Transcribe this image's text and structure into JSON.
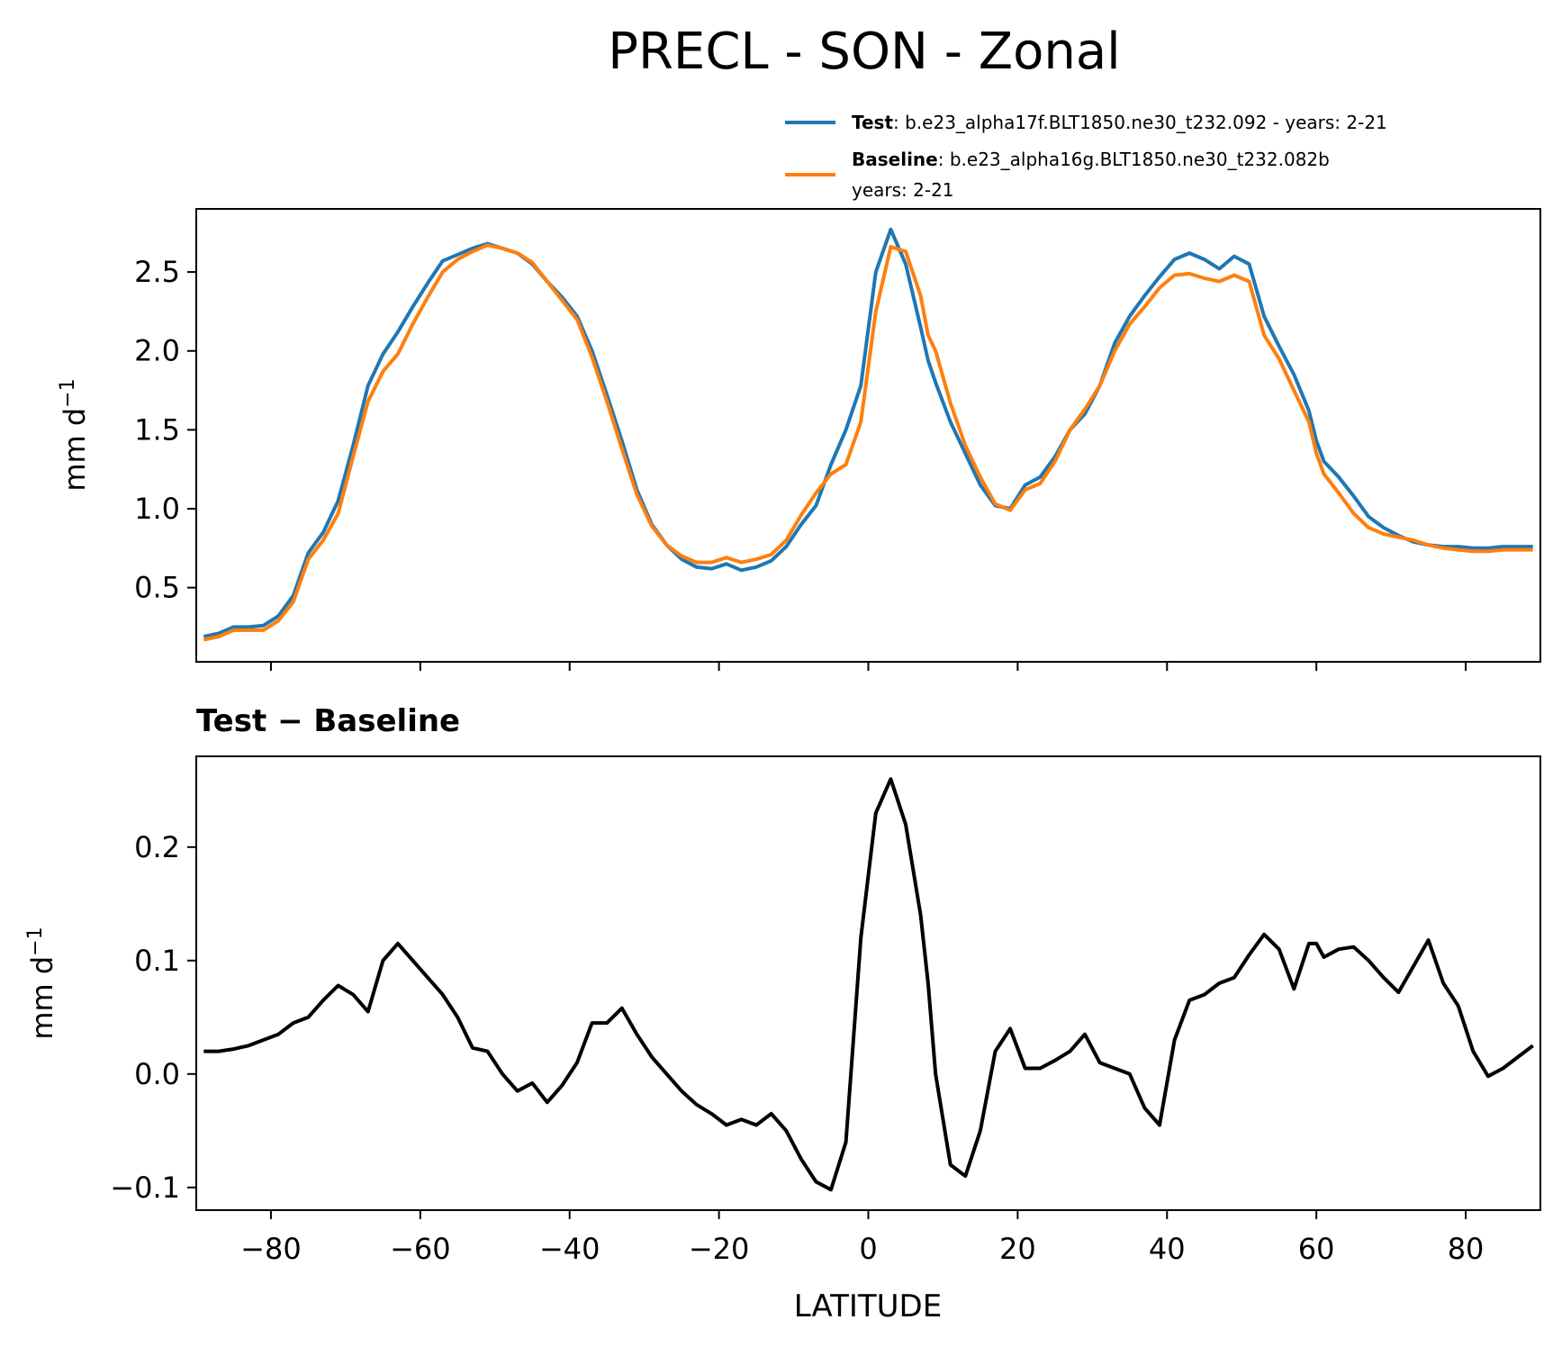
{
  "title": "PRECL - SON - Zonal",
  "legend": {
    "test_label": "Test",
    "test_text": ": b.e23_alpha17f.BLT1850.ne30_t232.092 - years: 2-21",
    "baseline_label": "Baseline",
    "baseline_text_line1": ": b.e23_alpha16g.BLT1850.ne30_t232.082b",
    "baseline_text_line2": "years: 2-21"
  },
  "colors": {
    "test": "#1f77b4",
    "baseline": "#ff7f0e",
    "diff": "#000000"
  },
  "chart_data": [
    {
      "type": "line",
      "panel": "top",
      "title": "",
      "xlabel": "",
      "ylabel": "mm d",
      "ylabel_sup": "−1",
      "xlim": [
        -90,
        90
      ],
      "ylim": [
        0.03,
        2.9
      ],
      "yticks": [
        0.5,
        1.0,
        1.5,
        2.0,
        2.5
      ],
      "ytick_labels": [
        "0.5",
        "1.0",
        "1.5",
        "2.0",
        "2.5"
      ],
      "xticks": [
        -80,
        -60,
        -40,
        -20,
        0,
        20,
        40,
        60,
        80
      ],
      "x": [
        -89,
        -87,
        -85,
        -83,
        -81,
        -79,
        -77,
        -75,
        -73,
        -71,
        -69,
        -67,
        -65,
        -63,
        -61,
        -59,
        -57,
        -55,
        -53,
        -51,
        -49,
        -47,
        -45,
        -43,
        -41,
        -39,
        -37,
        -35,
        -33,
        -31,
        -29,
        -27,
        -25,
        -23,
        -21,
        -19,
        -17,
        -15,
        -13,
        -11,
        -9,
        -7,
        -5,
        -3,
        -1,
        1,
        3,
        5,
        7,
        8,
        9,
        11,
        13,
        15,
        17,
        19,
        21,
        23,
        25,
        27,
        29,
        31,
        33,
        35,
        37,
        39,
        41,
        43,
        45,
        47,
        49,
        51,
        53,
        55,
        57,
        59,
        60,
        61,
        63,
        65,
        67,
        69,
        71,
        73,
        75,
        77,
        79,
        81,
        83,
        85,
        87,
        89
      ],
      "series": [
        {
          "name": "Test",
          "color": "#1f77b4",
          "values": [
            0.19,
            0.21,
            0.25,
            0.25,
            0.26,
            0.32,
            0.45,
            0.72,
            0.85,
            1.05,
            1.4,
            1.78,
            1.98,
            2.12,
            2.28,
            2.43,
            2.57,
            2.61,
            2.65,
            2.68,
            2.65,
            2.62,
            2.55,
            2.44,
            2.34,
            2.22,
            2.0,
            1.72,
            1.43,
            1.12,
            0.9,
            0.77,
            0.68,
            0.63,
            0.62,
            0.65,
            0.61,
            0.63,
            0.67,
            0.76,
            0.9,
            1.02,
            1.28,
            1.5,
            1.78,
            2.5,
            2.77,
            2.55,
            2.15,
            1.94,
            1.8,
            1.55,
            1.35,
            1.15,
            1.02,
            1.0,
            1.15,
            1.2,
            1.33,
            1.5,
            1.6,
            1.78,
            2.05,
            2.22,
            2.35,
            2.47,
            2.58,
            2.62,
            2.58,
            2.52,
            2.6,
            2.55,
            2.22,
            2.03,
            1.85,
            1.62,
            1.43,
            1.3,
            1.2,
            1.08,
            0.95,
            0.88,
            0.83,
            0.79,
            0.77,
            0.76,
            0.76,
            0.75,
            0.75,
            0.76,
            0.76,
            0.76
          ]
        },
        {
          "name": "Baseline",
          "color": "#ff7f0e",
          "values": [
            0.17,
            0.19,
            0.23,
            0.23,
            0.23,
            0.29,
            0.41,
            0.68,
            0.8,
            0.97,
            1.33,
            1.68,
            1.87,
            1.98,
            2.17,
            2.34,
            2.5,
            2.58,
            2.63,
            2.67,
            2.65,
            2.62,
            2.56,
            2.44,
            2.32,
            2.2,
            1.96,
            1.68,
            1.38,
            1.09,
            0.89,
            0.77,
            0.7,
            0.66,
            0.66,
            0.69,
            0.66,
            0.68,
            0.71,
            0.8,
            0.96,
            1.1,
            1.22,
            1.28,
            1.55,
            2.25,
            2.66,
            2.63,
            2.35,
            2.1,
            2.0,
            1.67,
            1.4,
            1.2,
            1.03,
            0.99,
            1.12,
            1.16,
            1.3,
            1.5,
            1.63,
            1.78,
            2.0,
            2.17,
            2.28,
            2.4,
            2.48,
            2.49,
            2.46,
            2.44,
            2.48,
            2.44,
            2.1,
            1.95,
            1.75,
            1.55,
            1.35,
            1.22,
            1.1,
            0.97,
            0.88,
            0.84,
            0.82,
            0.8,
            0.77,
            0.75,
            0.74,
            0.73,
            0.73,
            0.74,
            0.74,
            0.74
          ]
        }
      ]
    },
    {
      "type": "line",
      "panel": "bottom",
      "title": "Test − Baseline",
      "xlabel": "LATITUDE",
      "ylabel": "mm d",
      "ylabel_sup": "−1",
      "xlim": [
        -90,
        90
      ],
      "ylim": [
        -0.12,
        0.28
      ],
      "yticks": [
        -0.1,
        0.0,
        0.1,
        0.2
      ],
      "ytick_labels": [
        "−0.1",
        "0.0",
        "0.1",
        "0.2"
      ],
      "xticks": [
        -80,
        -60,
        -40,
        -20,
        0,
        20,
        40,
        60,
        80
      ],
      "xtick_labels": [
        "−80",
        "−60",
        "−40",
        "−20",
        "0",
        "20",
        "40",
        "60",
        "80"
      ],
      "x": [
        -89,
        -87,
        -85,
        -83,
        -81,
        -79,
        -77,
        -75,
        -73,
        -71,
        -69,
        -67,
        -65,
        -63,
        -61,
        -59,
        -57,
        -55,
        -53,
        -51,
        -49,
        -47,
        -45,
        -43,
        -41,
        -39,
        -37,
        -35,
        -33,
        -31,
        -29,
        -27,
        -25,
        -23,
        -21,
        -19,
        -17,
        -15,
        -13,
        -11,
        -9,
        -7,
        -5,
        -3,
        -1,
        1,
        3,
        5,
        7,
        8,
        9,
        11,
        13,
        15,
        17,
        19,
        21,
        23,
        25,
        27,
        29,
        31,
        33,
        35,
        37,
        39,
        41,
        43,
        45,
        47,
        49,
        51,
        53,
        55,
        57,
        59,
        60,
        61,
        63,
        65,
        67,
        69,
        71,
        73,
        75,
        77,
        79,
        81,
        83,
        85,
        87,
        89
      ],
      "series": [
        {
          "name": "Test − Baseline",
          "color": "#000000",
          "values": [
            0.02,
            0.02,
            0.022,
            0.025,
            0.03,
            0.035,
            0.045,
            0.05,
            0.065,
            0.078,
            0.07,
            0.055,
            0.1,
            0.115,
            0.1,
            0.085,
            0.07,
            0.05,
            0.023,
            0.02,
            0.0,
            -0.015,
            -0.008,
            -0.025,
            -0.01,
            0.01,
            0.045,
            0.045,
            0.058,
            0.035,
            0.015,
            0.0,
            -0.015,
            -0.027,
            -0.035,
            -0.045,
            -0.04,
            -0.045,
            -0.035,
            -0.05,
            -0.075,
            -0.095,
            -0.102,
            -0.06,
            0.12,
            0.23,
            0.26,
            0.22,
            0.14,
            0.08,
            0.0,
            -0.08,
            -0.09,
            -0.05,
            0.02,
            0.04,
            0.005,
            0.005,
            0.012,
            0.02,
            0.035,
            0.01,
            0.005,
            0.0,
            -0.03,
            -0.045,
            0.03,
            0.065,
            0.07,
            0.08,
            0.085,
            0.105,
            0.123,
            0.11,
            0.075,
            0.115,
            0.115,
            0.103,
            0.11,
            0.112,
            0.1,
            0.085,
            0.072,
            0.095,
            0.118,
            0.08,
            0.06,
            0.02,
            -0.002,
            0.005,
            0.015,
            0.025
          ]
        }
      ]
    }
  ]
}
